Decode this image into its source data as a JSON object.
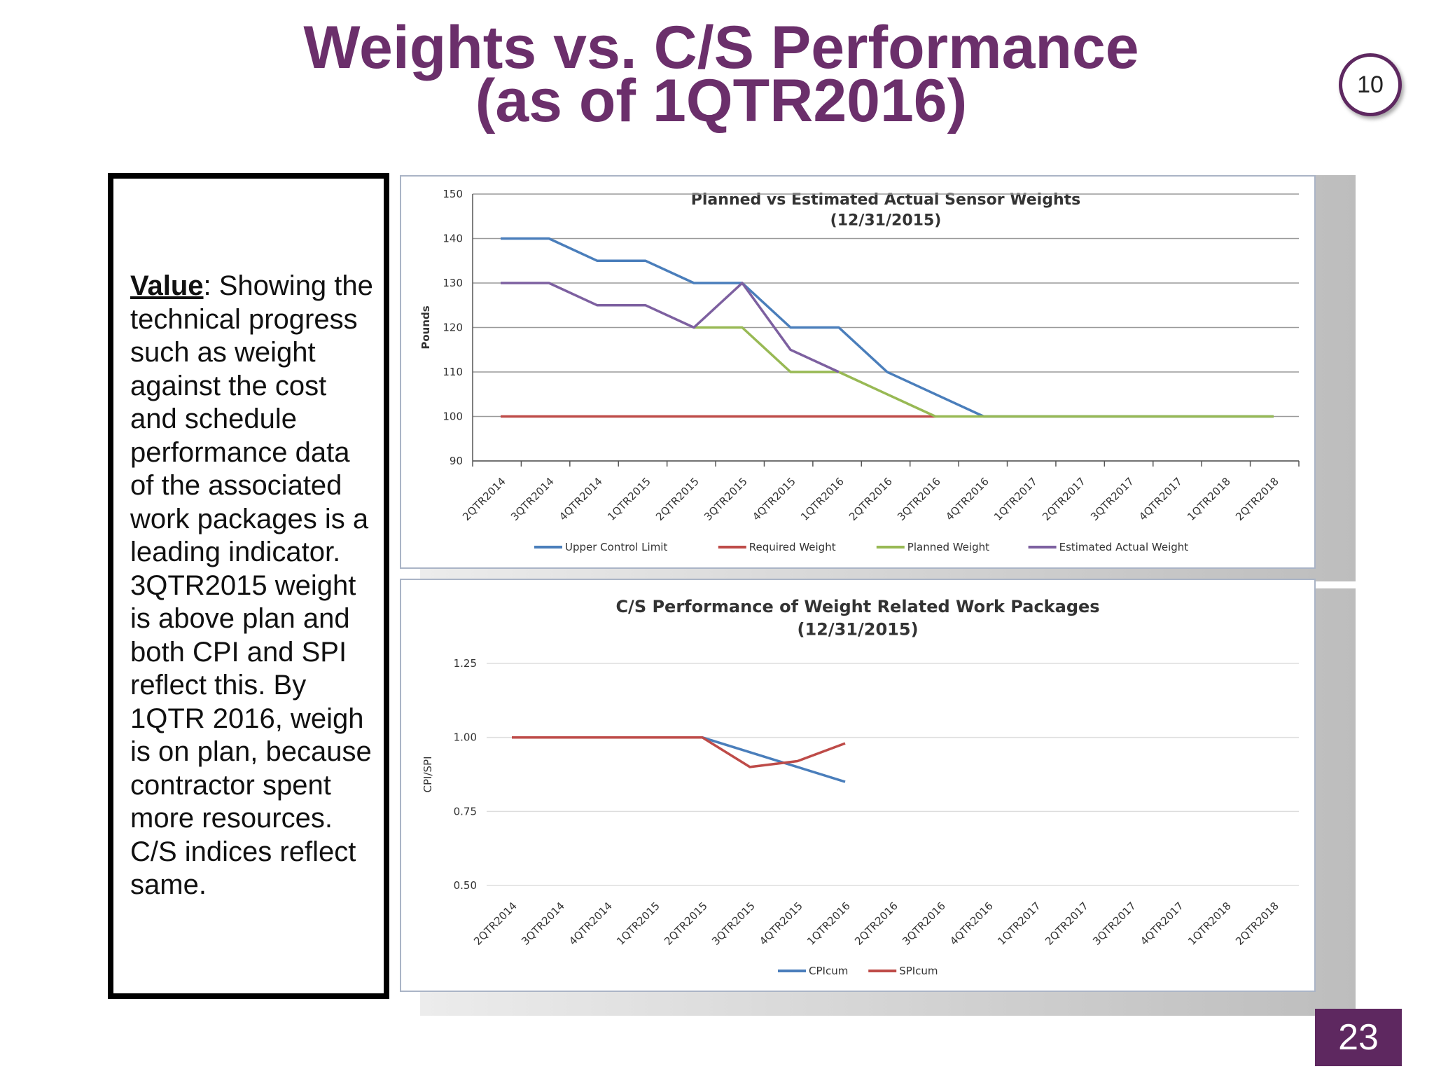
{
  "slide": {
    "title_line1": "Weights vs. C/S Performance",
    "title_line2": "(as of 1QTR2016)",
    "badge": "10",
    "page_number": "23",
    "accent_color": "#5e2860"
  },
  "textbox": {
    "value_label": "Value",
    "value_text": ":  Showing the technical progress such as weight against the cost and schedule performance data of the associated work packages is a leading indicator. 3QTR2015 weight is above plan and both CPI and SPI reflect this. By 1QTR 2016, weigh is on plan, because contractor spent more resources. C/S indices reflect same."
  },
  "chart_data": [
    {
      "type": "line",
      "title": "Planned vs Estimated Actual Sensor Weights",
      "subtitle": "(12/31/2015)",
      "xlabel": "",
      "ylabel": "Pounds",
      "ylim": [
        90,
        150
      ],
      "yticks": [
        "90",
        "100",
        "110",
        "120",
        "130",
        "140",
        "150"
      ],
      "grid": true,
      "legend": "bottom",
      "categories": [
        "2QTR2014",
        "3QTR2014",
        "4QTR2014",
        "1QTR2015",
        "2QTR2015",
        "3QTR2015",
        "4QTR2015",
        "1QTR2016",
        "2QTR2016",
        "3QTR2016",
        "4QTR2016",
        "1QTR2017",
        "2QTR2017",
        "3QTR2017",
        "4QTR2017",
        "1QTR2018",
        "2QTR2018"
      ],
      "series": [
        {
          "name": "Upper Control Limit",
          "color": "#4a7ebb",
          "values": [
            140,
            140,
            135,
            135,
            130,
            130,
            120,
            120,
            110,
            105,
            100,
            100,
            100,
            100,
            100,
            100,
            100
          ]
        },
        {
          "name": "Required Weight",
          "color": "#be4b48",
          "values": [
            100,
            100,
            100,
            100,
            100,
            100,
            100,
            100,
            100,
            100,
            null,
            null,
            null,
            null,
            null,
            null,
            null
          ]
        },
        {
          "name": "Planned Weight",
          "color": "#98b954",
          "values": [
            null,
            null,
            null,
            null,
            120,
            120,
            110,
            110,
            105,
            100,
            100,
            100,
            100,
            100,
            100,
            100,
            100
          ]
        },
        {
          "name": "Estimated Actual Weight",
          "color": "#7d60a0",
          "values": [
            130,
            130,
            125,
            125,
            120,
            130,
            115,
            110,
            null,
            null,
            null,
            null,
            null,
            null,
            null,
            null,
            null
          ]
        }
      ]
    },
    {
      "type": "line",
      "title": "C/S Performance of Weight Related Work Packages",
      "subtitle": "(12/31/2015)",
      "xlabel": "",
      "ylabel": "CPI/SPI",
      "ylim": [
        0.5,
        1.25
      ],
      "yticks": [
        "0.50",
        "0.75",
        "1.00",
        "1.25"
      ],
      "grid": true,
      "legend": "bottom",
      "categories": [
        "2QTR2014",
        "3QTR2014",
        "4QTR2014",
        "1QTR2015",
        "2QTR2015",
        "3QTR2015",
        "4QTR2015",
        "1QTR2016",
        "2QTR2016",
        "3QTR2016",
        "4QTR2016",
        "1QTR2017",
        "2QTR2017",
        "3QTR2017",
        "4QTR2017",
        "1QTR2018",
        "2QTR2018"
      ],
      "series": [
        {
          "name": "CPIcum",
          "color": "#4a7ebb",
          "values": [
            1.0,
            1.0,
            1.0,
            1.0,
            1.0,
            0.95,
            0.9,
            0.85,
            null,
            null,
            null,
            null,
            null,
            null,
            null,
            null,
            null
          ]
        },
        {
          "name": "SPIcum",
          "color": "#be4b48",
          "values": [
            1.0,
            1.0,
            1.0,
            1.0,
            1.0,
            0.9,
            0.92,
            0.98,
            null,
            null,
            null,
            null,
            null,
            null,
            null,
            null,
            null
          ]
        }
      ]
    }
  ]
}
